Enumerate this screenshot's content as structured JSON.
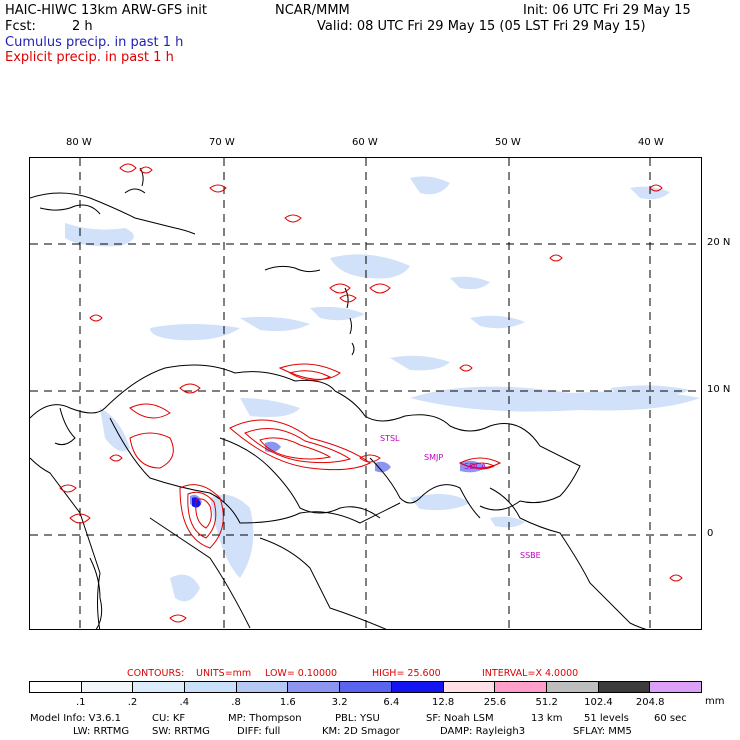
{
  "header": {
    "model_title": "HAIC-HIWC 13km ARW-GFS init",
    "org": "NCAR/MMM",
    "init": "Init: 06 UTC Fri 29 May 15",
    "fcst_label": "Fcst:",
    "fcst_value": "2 h",
    "valid": "Valid: 08 UTC Fri 29 May 15 (05 LST Fri 29 May 15)",
    "cumulus": "Cumulus precip. in past 1 h",
    "explicit": "Explicit precip. in past 1 h"
  },
  "map": {
    "lon_labels": [
      "80 W",
      "70 W",
      "60 W",
      "50 W",
      "40 W"
    ],
    "lat_labels": [
      "20 N",
      "10 N",
      "0"
    ],
    "stations": [
      "STSL",
      "SMJP",
      "SDCA",
      "SSBE"
    ]
  },
  "contours": {
    "label": "CONTOURS:",
    "units": "UNITS=mm",
    "low": "LOW= 0.10000",
    "high": "HIGH= 25.600",
    "interval": "INTERVAL=X 4.0000"
  },
  "legend": {
    "labels": [
      ".1",
      ".2",
      ".4",
      ".8",
      "1.6",
      "3.2",
      "6.4",
      "12.8",
      "25.6",
      "51.2",
      "102.4",
      "204.8"
    ],
    "unit": "mm",
    "colors": [
      "#ffffff",
      "#f2f6fa",
      "#dcecfa",
      "#c8e0f8",
      "#b4c8f4",
      "#8c96f0",
      "#5a64ee",
      "#1414f0",
      "#ffe0e6",
      "#ff9ec8",
      "#bebebe",
      "#3c3c3c",
      "#dca0f8"
    ]
  },
  "footer": {
    "line1": [
      "Model Info: V3.6.1",
      "CU: KF",
      "MP: Thompson",
      "PBL: YSU",
      "SF: Noah LSM",
      "13 km",
      "51 levels",
      "60 sec"
    ],
    "line2": [
      "LW: RRTMG",
      "SW: RRTMG",
      "DIFF: full",
      "KM: 2D Smagor",
      "DAMP: Rayleigh3",
      "SFLAY: MM5"
    ]
  }
}
